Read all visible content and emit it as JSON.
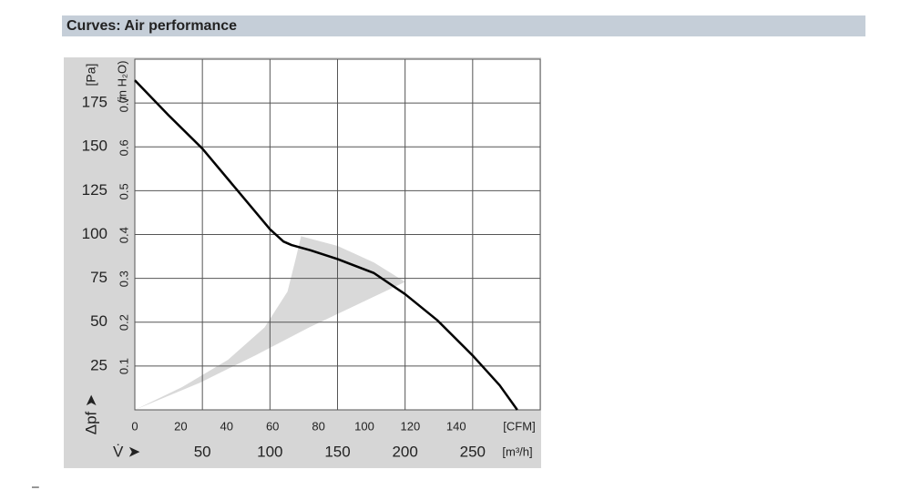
{
  "header": {
    "title": "Curves: Air performance"
  },
  "chart_data": {
    "type": "line",
    "y_label": "[Pa]",
    "y2_label": "(in H₂O)",
    "y_symbol": "Δpf ➤",
    "x_label": "[m³/h]",
    "x2_label": "[CFM]",
    "x_symbol": "V̇ ➤",
    "xlim": [
      0,
      300
    ],
    "xticks": [
      50,
      100,
      150,
      200,
      250
    ],
    "x2lim": [
      0,
      176.6
    ],
    "x2ticks": [
      0,
      20,
      40,
      60,
      80,
      100,
      120,
      140
    ],
    "ylim": [
      0,
      200
    ],
    "yticks": [
      25,
      50,
      75,
      100,
      125,
      150,
      175
    ],
    "y2lim": [
      0,
      0.803
    ],
    "y2ticks": [
      0.1,
      0.2,
      0.3,
      0.4,
      0.5,
      0.6,
      0.7
    ],
    "grid": true,
    "color": "#000000",
    "band_color": "#d9d9d9",
    "curve": {
      "x": [
        0,
        25,
        50,
        75,
        100,
        110,
        116,
        130,
        150,
        177,
        200,
        224,
        250,
        270,
        283
      ],
      "y": [
        188,
        168,
        149,
        126,
        103,
        96,
        94,
        91,
        86,
        78,
        66,
        51,
        31,
        14,
        0
      ]
    },
    "band": {
      "x": [
        0,
        35,
        69,
        96,
        113,
        119,
        123,
        150,
        177,
        200,
        170,
        129,
        89,
        48.5
      ],
      "y": [
        0,
        13,
        28.6,
        47,
        67.5,
        86,
        99,
        93.5,
        84,
        73,
        62,
        47,
        31,
        15.6
      ]
    }
  },
  "footer_mark": "–"
}
